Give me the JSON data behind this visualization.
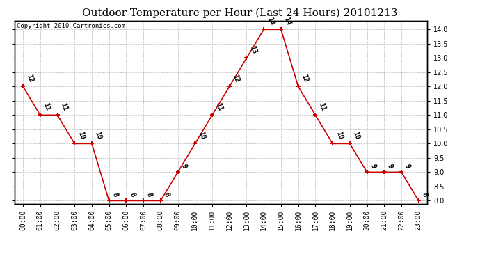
{
  "title": "Outdoor Temperature per Hour (Last 24 Hours) 20101213",
  "copyright": "Copyright 2010 Cartronics.com",
  "hours": [
    "00:00",
    "01:00",
    "02:00",
    "03:00",
    "04:00",
    "05:00",
    "06:00",
    "07:00",
    "08:00",
    "09:00",
    "10:00",
    "11:00",
    "12:00",
    "13:00",
    "14:00",
    "15:00",
    "16:00",
    "17:00",
    "18:00",
    "19:00",
    "20:00",
    "21:00",
    "22:00",
    "23:00"
  ],
  "temps": [
    12,
    11,
    11,
    10,
    10,
    8,
    8,
    8,
    8,
    9,
    10,
    11,
    12,
    13,
    14,
    14,
    12,
    11,
    10,
    10,
    9,
    9,
    9,
    8
  ],
  "ylim_min": 7.9,
  "ylim_max": 14.3,
  "yticks": [
    8.0,
    8.5,
    9.0,
    9.5,
    10.0,
    10.5,
    11.0,
    11.5,
    12.0,
    12.5,
    13.0,
    13.5,
    14.0
  ],
  "line_color": "#cc0000",
  "marker_color": "#cc0000",
  "bg_color": "#ffffff",
  "grid_color": "#bbbbbb",
  "title_fontsize": 11,
  "label_fontsize": 7,
  "copyright_fontsize": 6.5,
  "tick_fontsize": 7
}
